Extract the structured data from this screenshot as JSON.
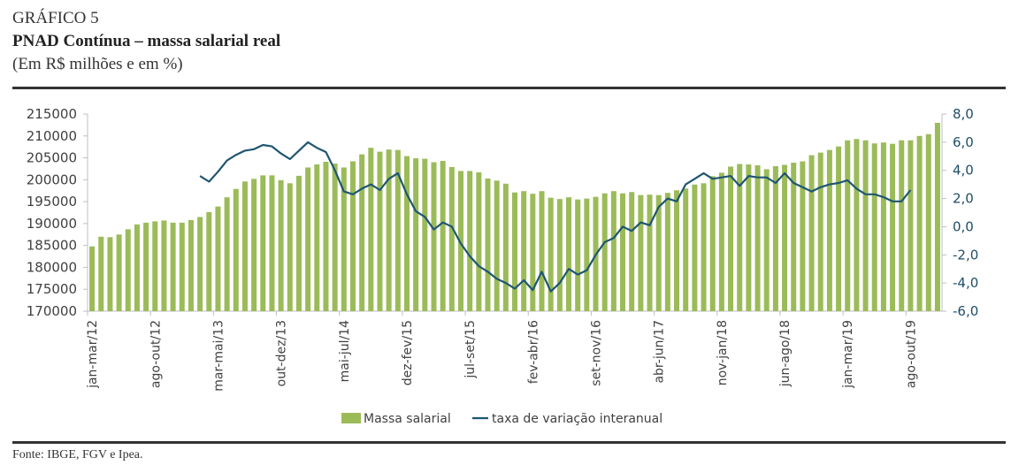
{
  "header": {
    "label": "GRÁFICO 5",
    "title": "PNAD Contínua – massa salarial real",
    "subtitle": "(Em R$ milhões e em %)"
  },
  "source": "Fonte: IBGE, FGV e Ipea.",
  "colors": {
    "bars": "#9bbb59",
    "line": "#1f5670",
    "axis": "#bfbfbf"
  },
  "chart_data": {
    "type": "bar+line",
    "title": "PNAD Contínua – massa salarial real",
    "xlabel": "",
    "ylabel": "R$ milhões",
    "y2label": "%",
    "ylim": [
      170000,
      215000
    ],
    "y2lim": [
      -6,
      8
    ],
    "yticks": [
      "215000",
      "210000",
      "205000",
      "200000",
      "195000",
      "190000",
      "185000",
      "180000",
      "175000",
      "170000"
    ],
    "y2ticks": [
      "8,0",
      "6,0",
      "4,0",
      "2,0",
      "0,0",
      "-2,0",
      "-4,0",
      "-6,0"
    ],
    "xtick_labels": [
      "jan-mar/12",
      "ago-out/12",
      "mar-mai/13",
      "out-dez/13",
      "mai-jul/14",
      "dez-fev/15",
      "jul-set/15",
      "fev-abr/16",
      "set-nov/16",
      "abr-jun/17",
      "nov-jan/18",
      "jun-ago/18",
      "jan-mar/19",
      "ago-out/19"
    ],
    "xtick_every": 7,
    "legend": {
      "position": "bottom",
      "entries": [
        "Massa salarial",
        "taxa de variação interanual"
      ]
    },
    "series": [
      {
        "name": "Massa salarial",
        "type": "bar",
        "axis": "left",
        "values": [
          184800,
          187000,
          186900,
          187500,
          188700,
          189800,
          190200,
          190500,
          190700,
          190200,
          190200,
          190800,
          191500,
          192600,
          193900,
          196000,
          197900,
          199600,
          200200,
          201000,
          201000,
          199900,
          199200,
          200900,
          202800,
          203500,
          204100,
          203700,
          202800,
          204200,
          205800,
          207300,
          206400,
          206900,
          206800,
          205400,
          204900,
          204800,
          204000,
          204300,
          202900,
          202000,
          202000,
          201700,
          200300,
          199800,
          199100,
          197100,
          197400,
          196800,
          197400,
          195900,
          195600,
          196000,
          195500,
          195700,
          196100,
          196900,
          197400,
          196900,
          197200,
          196500,
          196600,
          196500,
          197000,
          197600,
          198000,
          198900,
          199200,
          200800,
          201600,
          203000,
          203600,
          203500,
          203300,
          202400,
          203100,
          203400,
          203900,
          204200,
          205600,
          206200,
          206800,
          207600,
          209000,
          209300,
          209000,
          208300,
          208500,
          208200,
          209000,
          209000,
          210000,
          210400,
          213000
        ]
      },
      {
        "name": "taxa de variação interanual",
        "type": "line",
        "axis": "right",
        "start_index": 12,
        "values": [
          3.6,
          3.2,
          3.9,
          4.7,
          5.1,
          5.4,
          5.5,
          5.8,
          5.7,
          5.2,
          4.8,
          5.4,
          6.0,
          5.6,
          5.3,
          4.0,
          2.5,
          2.3,
          2.7,
          3.0,
          2.6,
          3.4,
          3.8,
          2.3,
          1.1,
          0.7,
          -0.2,
          0.3,
          0.0,
          -1.2,
          -2.1,
          -2.8,
          -3.2,
          -3.7,
          -4.0,
          -4.4,
          -3.8,
          -4.5,
          -3.2,
          -4.6,
          -4.0,
          -3.0,
          -3.4,
          -3.1,
          -2.0,
          -1.1,
          -0.8,
          0.0,
          -0.3,
          0.3,
          0.1,
          1.4,
          2.0,
          1.8,
          3.0,
          3.4,
          3.8,
          3.4,
          3.5,
          3.6,
          2.9,
          3.6,
          3.5,
          3.5,
          3.1,
          3.8,
          3.1,
          2.8,
          2.5,
          2.8,
          3.0,
          3.1,
          3.3,
          2.7,
          2.3,
          2.3,
          2.1,
          1.8,
          1.8,
          2.6
        ]
      }
    ]
  }
}
